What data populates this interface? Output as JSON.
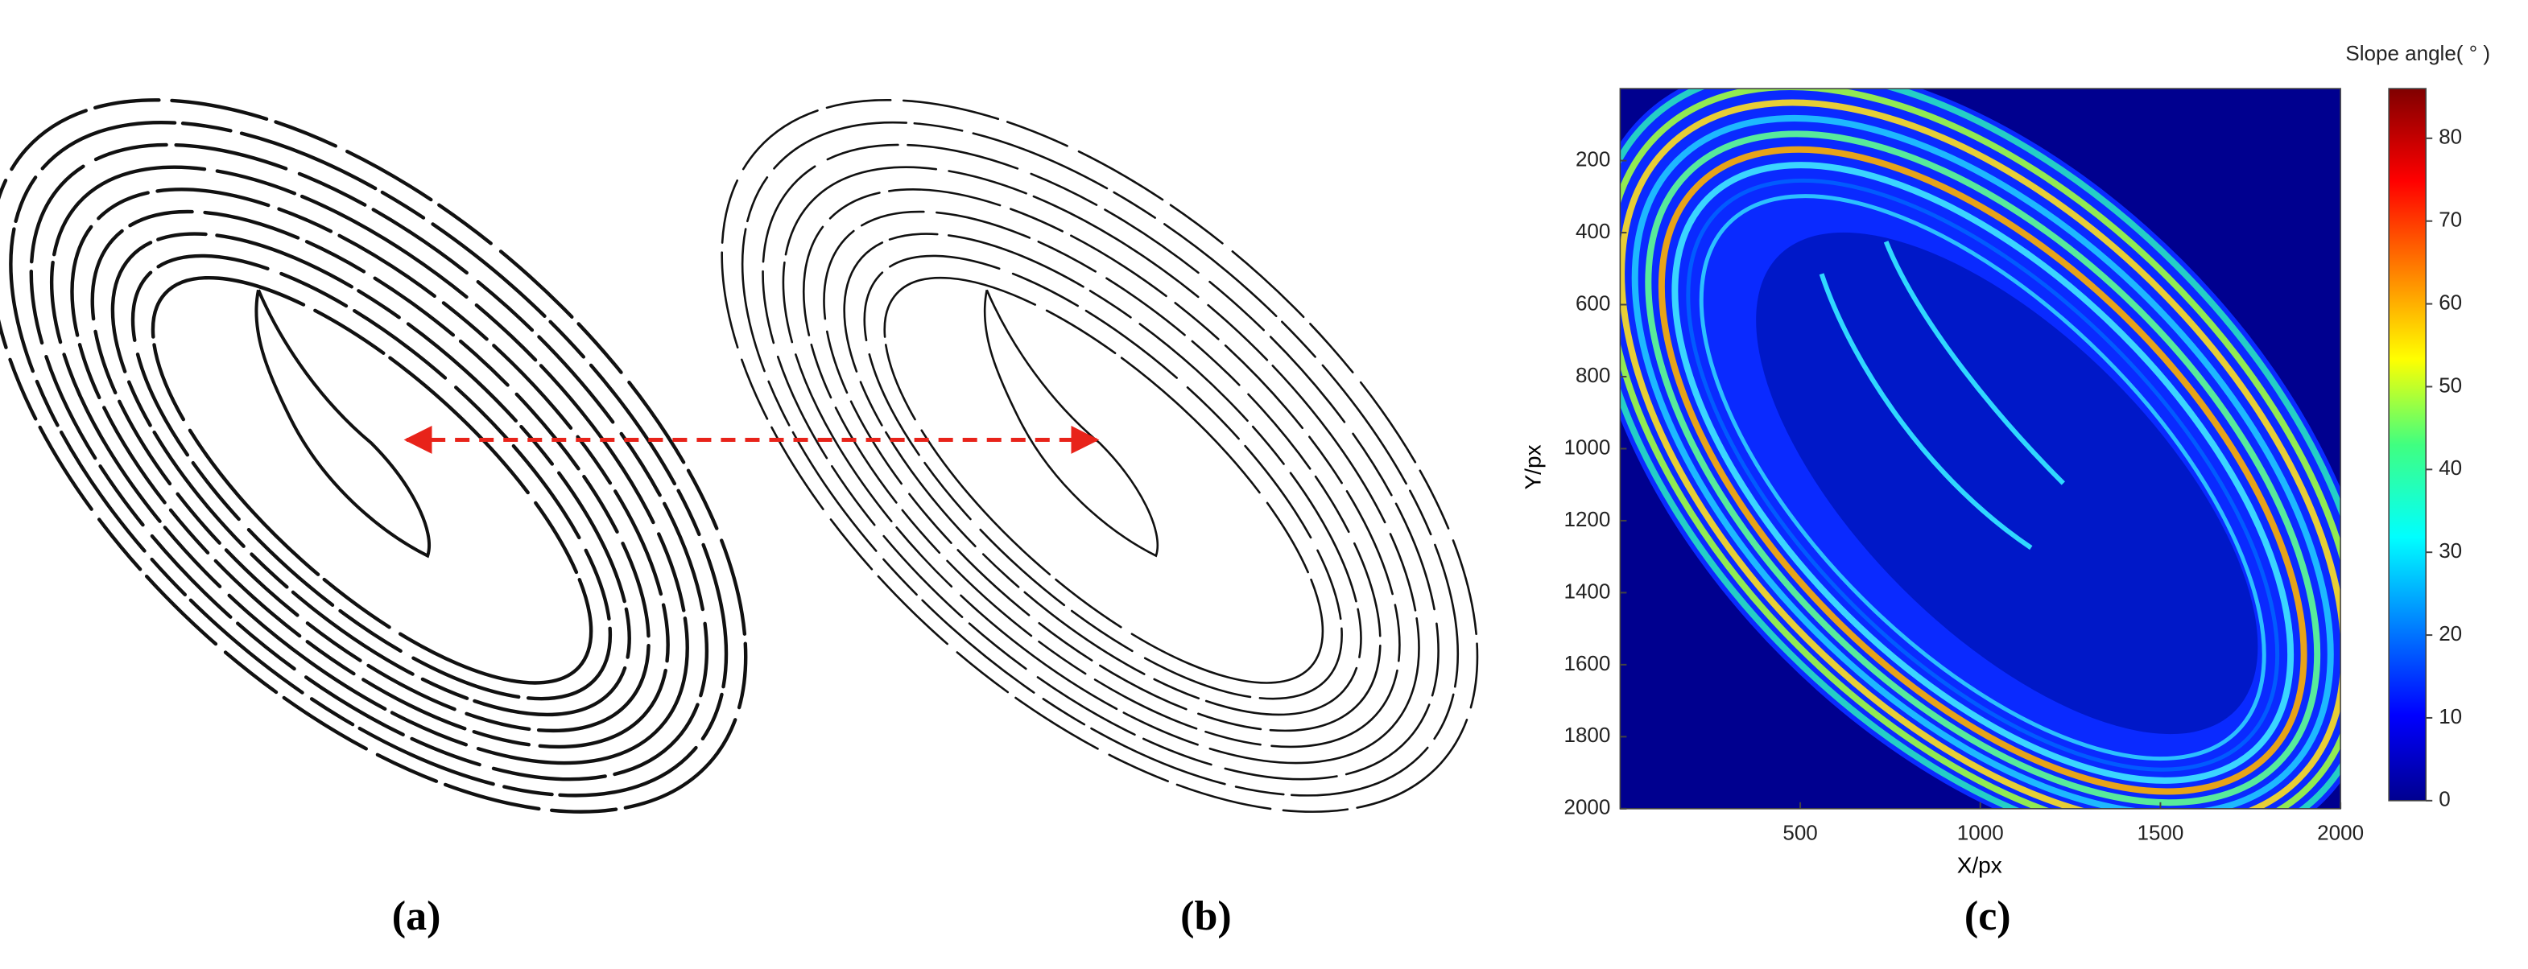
{
  "panels": [
    {
      "label": "(a)"
    },
    {
      "label": "(b)"
    },
    {
      "label": "(c)"
    }
  ],
  "chart_data": {
    "type": "heatmap",
    "xlabel": "X/px",
    "ylabel": "Y/px",
    "xlim": [
      0,
      2000
    ],
    "xticks": [
      500,
      1000,
      1500,
      2000
    ],
    "ylim": [
      2000,
      0
    ],
    "yticks": [
      200,
      400,
      600,
      800,
      1000,
      1200,
      1400,
      1600,
      1800,
      2000
    ],
    "colorbar": {
      "title": "Slope angle( ° )",
      "lim": [
        0,
        86
      ],
      "ticks": [
        0,
        10,
        20,
        30,
        40,
        50,
        60,
        70,
        80
      ]
    }
  }
}
